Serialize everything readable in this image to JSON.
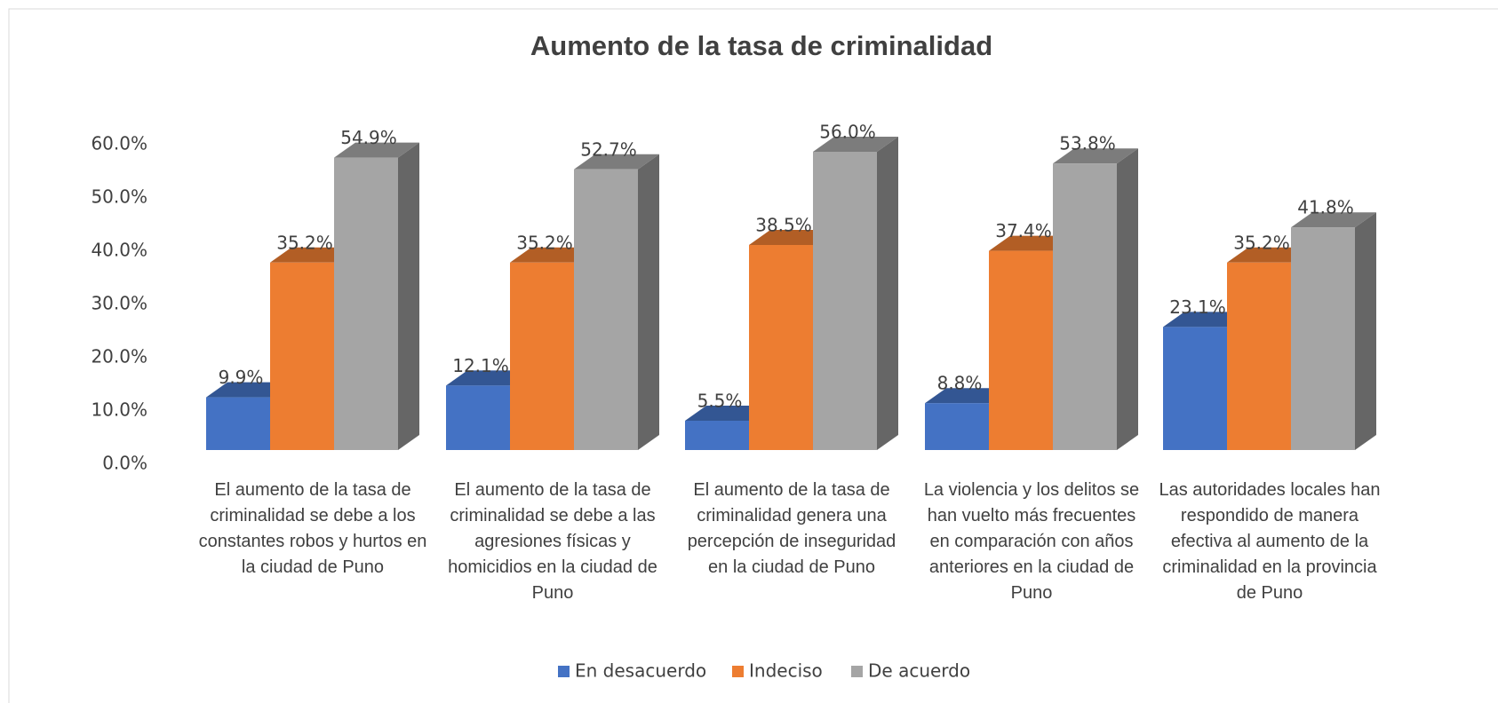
{
  "chart_data": {
    "type": "bar3d",
    "title": "Aumento de la tasa de criminalidad",
    "categories": [
      "El aumento de la tasa de criminalidad se debe a los constantes robos y hurtos en la ciudad de Puno",
      "El aumento de la tasa de criminalidad se debe a las agresiones físicas y homicidios en la ciudad de Puno",
      "El aumento de la tasa de criminalidad genera una percepción de inseguridad en la ciudad de Puno",
      "La violencia y los delitos se han vuelto más frecuentes en comparación con años anteriores en la ciudad de Puno",
      "Las autoridades locales han respondido de manera efectiva al aumento de la criminalidad en la provincia de Puno"
    ],
    "series": [
      {
        "name": "En desacuerdo",
        "color": "#4472c4",
        "values": [
          9.9,
          12.1,
          5.5,
          8.8,
          23.1
        ],
        "value_labels": [
          "9.9%",
          "12.1%",
          "5.5%",
          "8.8%",
          "23.1%"
        ]
      },
      {
        "name": "Indeciso",
        "color": "#ed7d31",
        "values": [
          35.2,
          35.2,
          38.5,
          37.4,
          35.2
        ],
        "value_labels": [
          "35.2%",
          "35.2%",
          "38.5%",
          "37.4%",
          "35.2%"
        ]
      },
      {
        "name": "De acuerdo",
        "color": "#a5a5a5",
        "values": [
          54.9,
          52.7,
          56.0,
          53.8,
          41.8
        ],
        "value_labels": [
          "54.9%",
          "52.7%",
          "56.0%",
          "53.8%",
          "41.8%"
        ]
      }
    ],
    "ylim": [
      0,
      60
    ],
    "yticks": [
      {
        "value": 0,
        "label": "0.0%"
      },
      {
        "value": 10,
        "label": "10.0%"
      },
      {
        "value": 20,
        "label": "20.0%"
      },
      {
        "value": 30,
        "label": "30.0%"
      },
      {
        "value": 40,
        "label": "40.0%"
      },
      {
        "value": 50,
        "label": "50.0%"
      },
      {
        "value": 60,
        "label": "60.0%"
      }
    ],
    "legend": "bottom"
  }
}
